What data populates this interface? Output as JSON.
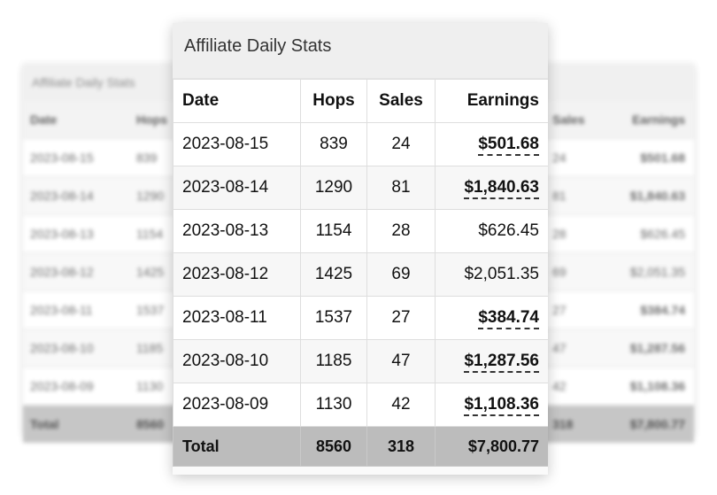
{
  "card": {
    "title": "Affiliate Daily Stats",
    "columns": {
      "date": "Date",
      "hops": "Hops",
      "sales": "Sales",
      "earnings": "Earnings"
    },
    "rows": [
      {
        "date": "2023-08-15",
        "hops": "839",
        "sales": "24",
        "earnings": "$501.68",
        "highlight": true
      },
      {
        "date": "2023-08-14",
        "hops": "1290",
        "sales": "81",
        "earnings": "$1,840.63",
        "highlight": true
      },
      {
        "date": "2023-08-13",
        "hops": "1154",
        "sales": "28",
        "earnings": "$626.45",
        "highlight": false
      },
      {
        "date": "2023-08-12",
        "hops": "1425",
        "sales": "69",
        "earnings": "$2,051.35",
        "highlight": false
      },
      {
        "date": "2023-08-11",
        "hops": "1537",
        "sales": "27",
        "earnings": "$384.74",
        "highlight": true
      },
      {
        "date": "2023-08-10",
        "hops": "1185",
        "sales": "47",
        "earnings": "$1,287.56",
        "highlight": true
      },
      {
        "date": "2023-08-09",
        "hops": "1130",
        "sales": "42",
        "earnings": "$1,108.36",
        "highlight": true
      }
    ],
    "total": {
      "label": "Total",
      "hops": "8560",
      "sales": "318",
      "earnings": "$7,800.77"
    }
  },
  "colors": {
    "title_bg": "#efefef",
    "total_bg": "#bcbcbc",
    "row_alt_bg": "#f7f7f7"
  }
}
